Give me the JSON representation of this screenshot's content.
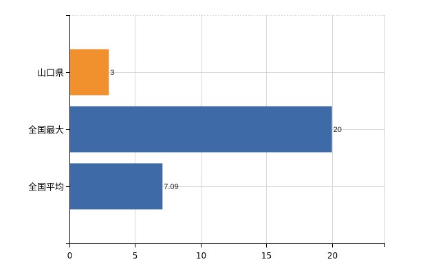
{
  "chart_data": {
    "type": "bar",
    "orientation": "horizontal",
    "title": "",
    "xlabel": "",
    "ylabel": "",
    "categories": [
      "山口県",
      "全国最大",
      "全国平均"
    ],
    "values": [
      3,
      20,
      7.09
    ],
    "value_labels": [
      "3",
      "20",
      "7.09"
    ],
    "bar_colors": [
      "#F0912E",
      "#3E6BA8",
      "#3E6BA8"
    ],
    "xlim": [
      0,
      24
    ],
    "xticks": [
      0,
      5,
      10,
      15,
      20
    ],
    "xtick_labels": [
      "0",
      "5",
      "10",
      "15",
      "20"
    ],
    "grid": true,
    "legend": "none"
  },
  "colors": {
    "grid": "#d9d9d9",
    "axis": "#000000"
  }
}
